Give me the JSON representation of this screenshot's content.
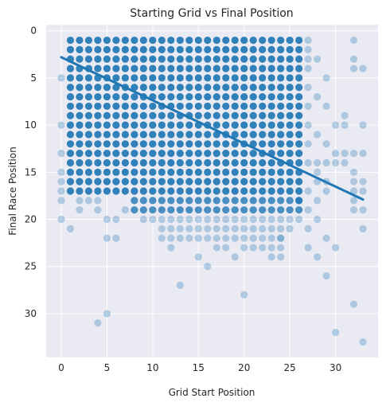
{
  "chart_data": {
    "type": "scatter",
    "title": "Starting Grid vs Final Position",
    "xlabel": "Grid Start Position",
    "ylabel": "Final Race Position",
    "xlim": [
      -1.65,
      34.65
    ],
    "ylim": [
      34.65,
      -0.65
    ],
    "y_inverted": true,
    "xticks": [
      0,
      5,
      10,
      15,
      20,
      25,
      30
    ],
    "yticks": [
      0,
      5,
      10,
      15,
      20,
      25,
      30
    ],
    "grid": true,
    "background_color": "#eaeaf2",
    "point_color": "#1f77b4",
    "point_alpha": 0.3,
    "dense_region": {
      "x_min": 1,
      "x_max": 26,
      "y_min": 1,
      "y_max": 17
    },
    "lower_region_x": [
      8,
      9,
      10,
      11,
      12,
      13,
      14,
      15,
      16,
      17,
      18,
      19,
      20,
      21,
      22,
      23,
      24,
      25,
      26
    ],
    "lower_region_ymax": [
      19,
      20,
      20,
      21,
      21,
      21,
      21,
      22,
      22,
      22,
      22,
      22,
      23,
      23,
      23,
      23,
      23,
      21,
      20
    ],
    "scattered_points": [
      [
        0,
        5
      ],
      [
        0,
        10
      ],
      [
        0,
        13
      ],
      [
        0,
        15
      ],
      [
        0,
        16
      ],
      [
        0,
        17
      ],
      [
        0,
        18
      ],
      [
        0,
        20
      ],
      [
        1,
        21
      ],
      [
        2,
        18
      ],
      [
        2,
        19
      ],
      [
        3,
        18
      ],
      [
        4,
        18
      ],
      [
        4,
        19
      ],
      [
        5,
        20
      ],
      [
        5,
        22
      ],
      [
        6,
        20
      ],
      [
        6,
        22
      ],
      [
        7,
        19
      ],
      [
        4,
        31
      ],
      [
        5,
        30
      ],
      [
        13,
        27
      ],
      [
        16,
        25
      ],
      [
        15,
        24
      ],
      [
        17,
        23
      ],
      [
        18,
        23
      ],
      [
        19,
        24
      ],
      [
        20,
        28
      ],
      [
        23,
        24
      ],
      [
        24,
        24
      ],
      [
        24,
        22
      ],
      [
        12,
        22
      ],
      [
        11,
        22
      ],
      [
        13,
        22
      ],
      [
        14,
        22
      ],
      [
        12,
        23
      ],
      [
        26,
        18
      ],
      [
        27,
        1
      ],
      [
        27,
        2
      ],
      [
        27,
        3
      ],
      [
        27,
        4
      ],
      [
        27,
        6
      ],
      [
        27,
        8
      ],
      [
        27,
        10
      ],
      [
        27,
        12
      ],
      [
        27,
        14
      ],
      [
        27,
        17
      ],
      [
        27,
        19
      ],
      [
        27,
        21
      ],
      [
        27,
        23
      ],
      [
        28,
        3
      ],
      [
        28,
        7
      ],
      [
        28,
        11
      ],
      [
        28,
        14
      ],
      [
        28,
        15
      ],
      [
        28,
        16
      ],
      [
        28,
        18
      ],
      [
        28,
        20
      ],
      [
        28,
        24
      ],
      [
        29,
        5
      ],
      [
        29,
        8
      ],
      [
        29,
        12
      ],
      [
        29,
        14
      ],
      [
        29,
        16
      ],
      [
        29,
        17
      ],
      [
        29,
        22
      ],
      [
        29,
        26
      ],
      [
        30,
        10
      ],
      [
        30,
        13
      ],
      [
        30,
        14
      ],
      [
        30,
        23
      ],
      [
        30,
        32
      ],
      [
        31,
        9
      ],
      [
        31,
        10
      ],
      [
        31,
        13
      ],
      [
        31,
        14
      ],
      [
        32,
        1
      ],
      [
        32,
        3
      ],
      [
        32,
        4
      ],
      [
        32,
        13
      ],
      [
        32,
        15
      ],
      [
        32,
        16
      ],
      [
        32,
        17
      ],
      [
        32,
        18
      ],
      [
        32,
        19
      ],
      [
        32,
        29
      ],
      [
        33,
        4
      ],
      [
        33,
        10
      ],
      [
        33,
        13
      ],
      [
        33,
        16
      ],
      [
        33,
        17
      ],
      [
        33,
        19
      ],
      [
        33,
        21
      ],
      [
        33,
        33
      ]
    ],
    "trendline": {
      "x": [
        0,
        33
      ],
      "y": [
        2.8,
        17.9
      ],
      "color": "#1f77b4"
    }
  }
}
